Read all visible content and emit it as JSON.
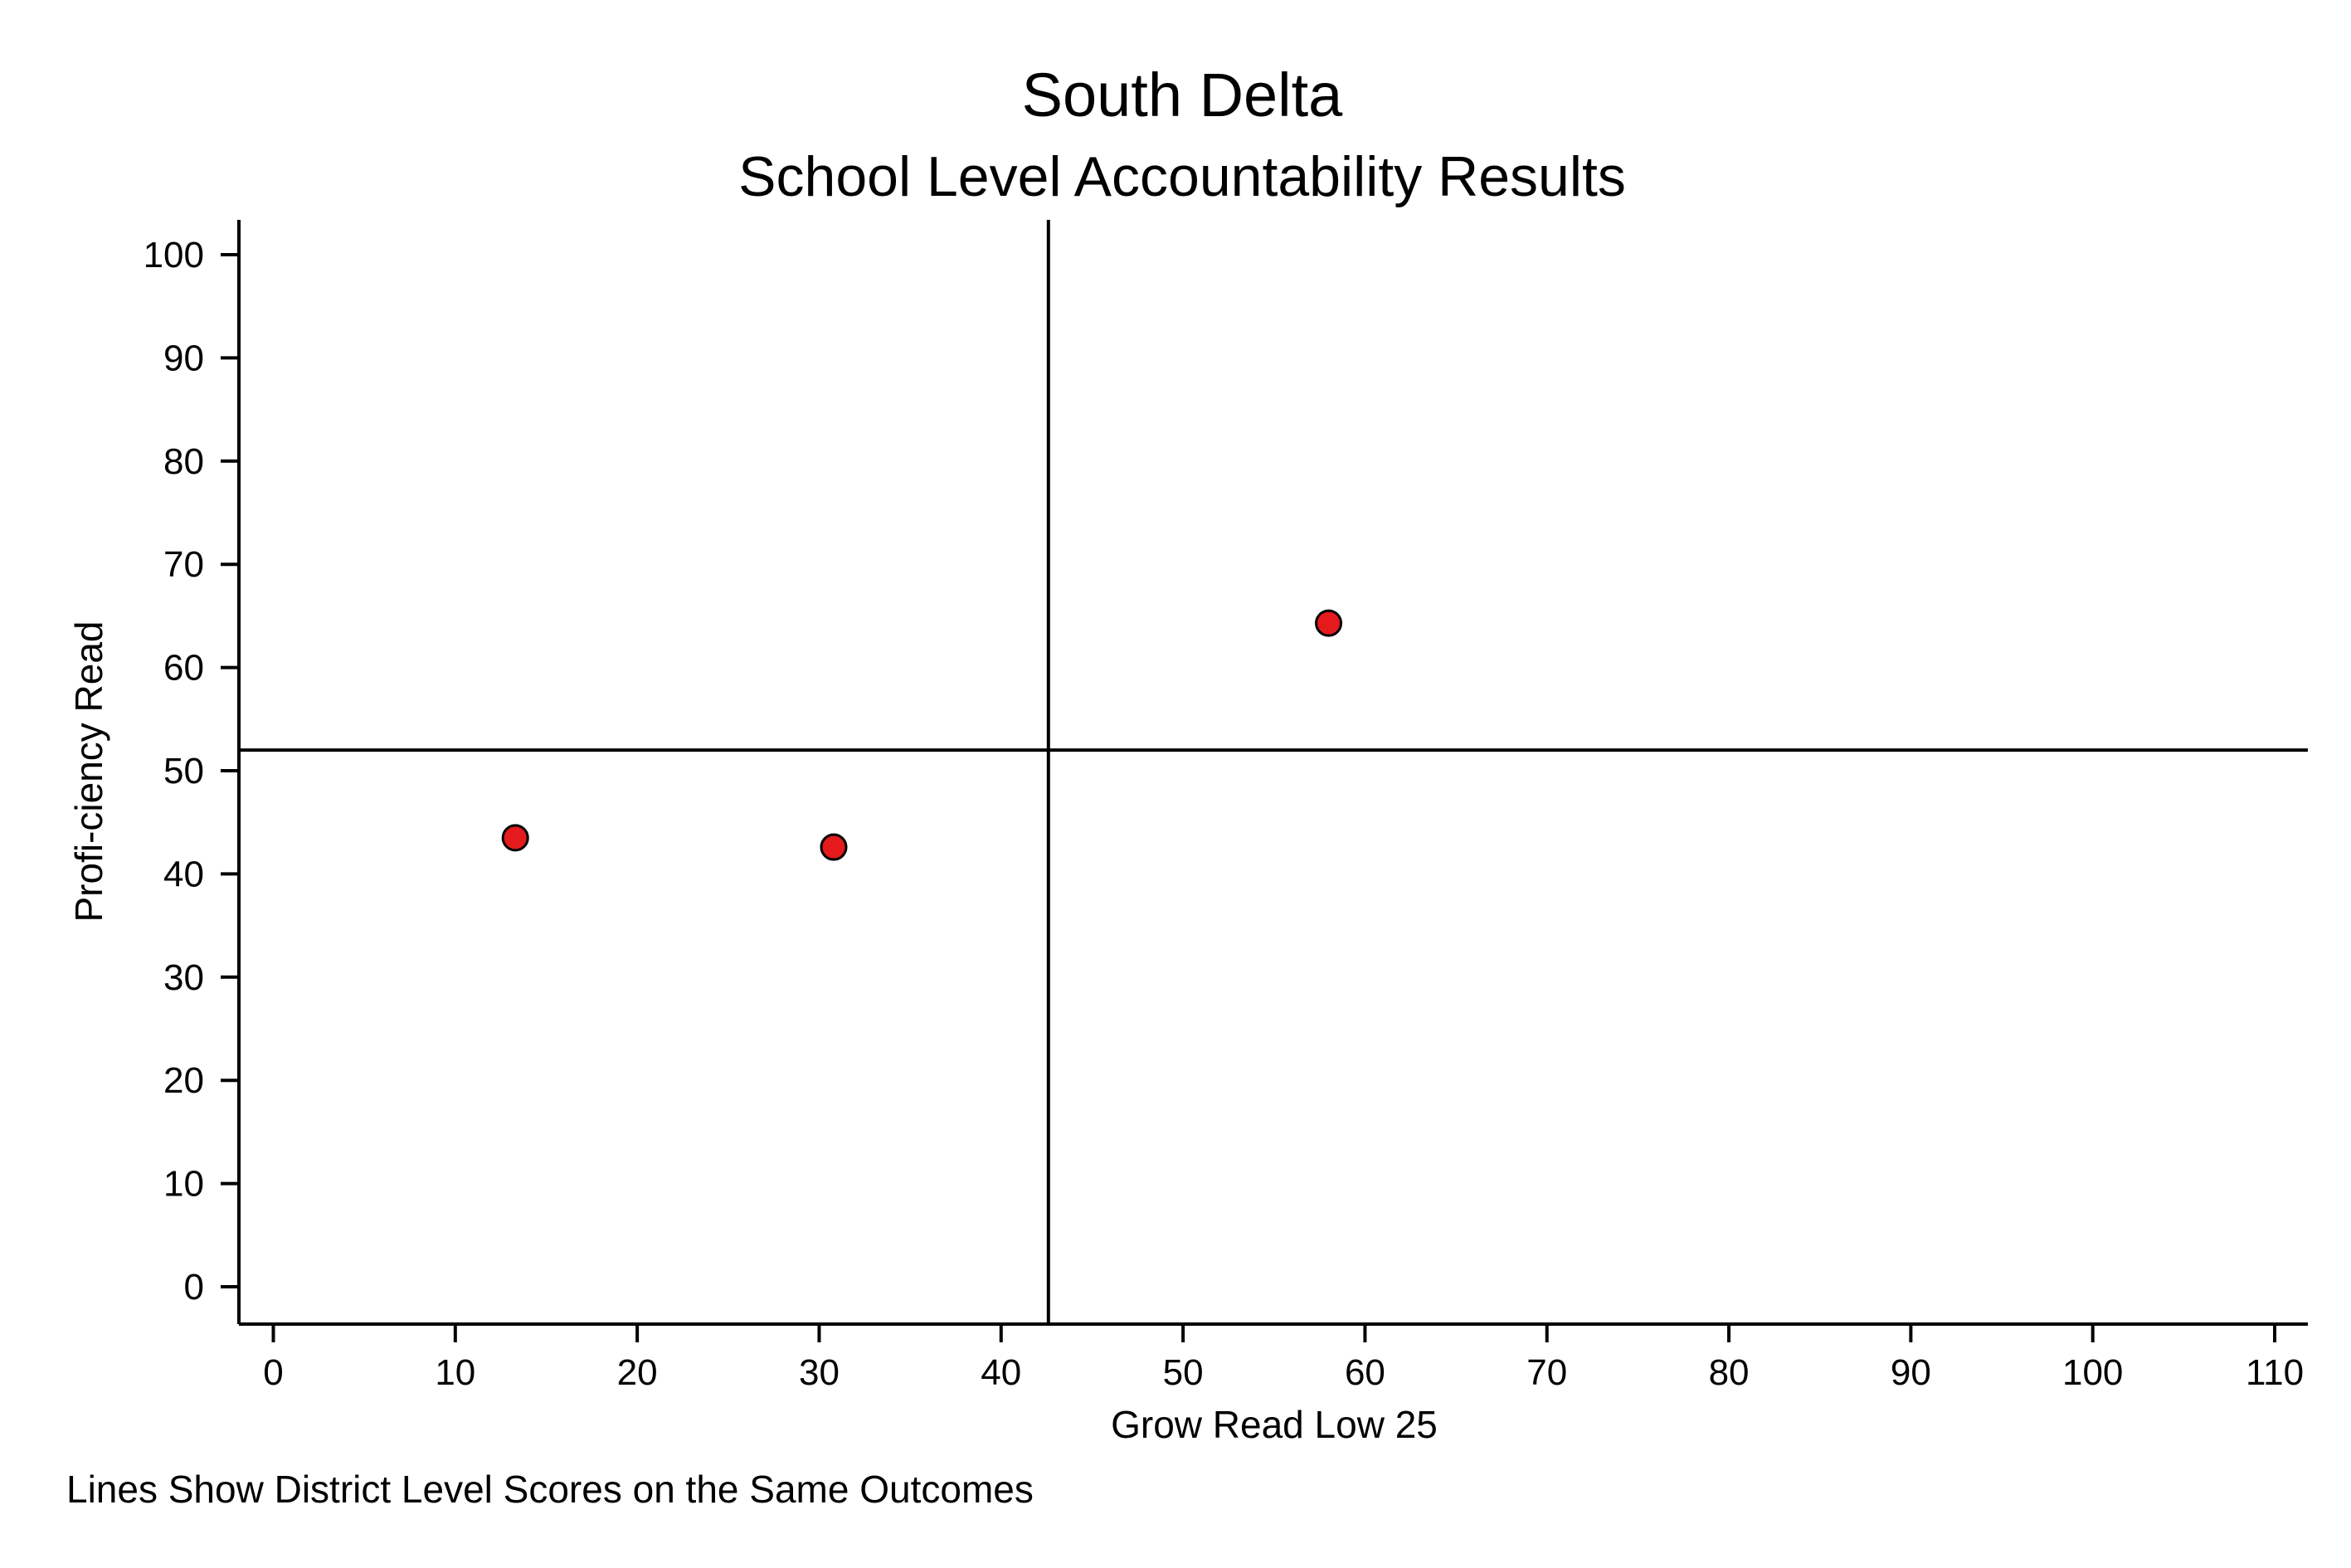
{
  "chart_data": {
    "type": "scatter",
    "title": "South Delta",
    "subtitle": "School Level Accountability Results",
    "xlabel": "Grow Read Low 25",
    "ylabel": "Profi-ciency Read",
    "note": "Lines Show District Level Scores on the Same Outcomes",
    "xlim": [
      -2,
      112
    ],
    "ylim": [
      -3,
      103
    ],
    "x_ticks": [
      "0",
      "10",
      "20",
      "30",
      "40",
      "50",
      "60",
      "70",
      "80",
      "90",
      "100",
      "110"
    ],
    "y_ticks": [
      "0",
      "10",
      "20",
      "30",
      "40",
      "50",
      "60",
      "70",
      "80",
      "90",
      "100"
    ],
    "points": [
      {
        "x": 13.3,
        "y": 43.5
      },
      {
        "x": 30.8,
        "y": 42.6
      },
      {
        "x": 58.0,
        "y": 64.3
      }
    ],
    "reference_lines": {
      "x": 42.6,
      "y": 52
    },
    "grid": false,
    "marker_color": "#e41a1c",
    "marker_edge_color": "#000000",
    "line_color": "#000000"
  }
}
